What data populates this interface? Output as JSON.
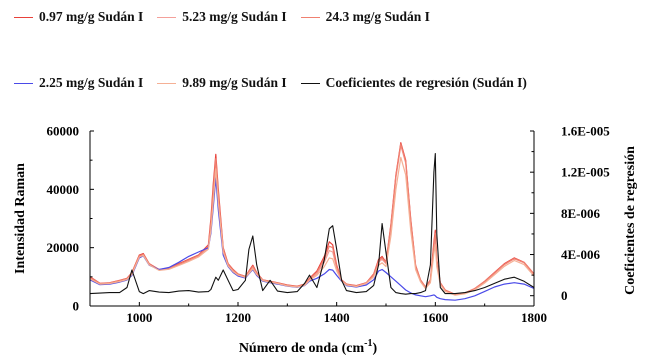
{
  "chart_data": {
    "type": "line",
    "xlabel": "Número de onda (cm",
    "xlabel_sup": "-1",
    "xlabel_close": ")",
    "ylabel": "Intensidad Raman",
    "y2label": "Coeficientes de regresión",
    "xlim": [
      900,
      1800
    ],
    "ylim": [
      0,
      60000
    ],
    "y2lim": [
      -1e-06,
      1.6e-05
    ],
    "x_ticks": [
      1000,
      1200,
      1400,
      1600,
      1800
    ],
    "x_tick_labels": [
      "1000",
      "1200",
      "1400",
      "1600",
      "1800"
    ],
    "y_ticks": [
      0,
      20000,
      40000,
      60000
    ],
    "y_tick_labels": [
      "0",
      "20000",
      "40000",
      "60000"
    ],
    "y2_ticks": [
      0,
      4e-06,
      8e-06,
      1.2e-05,
      1.6e-05
    ],
    "y2_tick_labels": [
      "0",
      "4E-006",
      "8E-006",
      "1.2E-005",
      "1.6E-005"
    ],
    "legend_position": "top",
    "grid": false,
    "x": [
      900,
      920,
      940,
      960,
      975,
      985,
      1000,
      1008,
      1020,
      1040,
      1060,
      1080,
      1100,
      1120,
      1140,
      1145,
      1150,
      1155,
      1160,
      1170,
      1180,
      1190,
      1200,
      1215,
      1222,
      1230,
      1238,
      1250,
      1265,
      1280,
      1300,
      1320,
      1335,
      1345,
      1360,
      1375,
      1385,
      1392,
      1400,
      1410,
      1420,
      1440,
      1460,
      1475,
      1485,
      1492,
      1500,
      1510,
      1520,
      1530,
      1540,
      1550,
      1560,
      1570,
      1580,
      1590,
      1597,
      1600,
      1603,
      1610,
      1620,
      1640,
      1660,
      1680,
      1700,
      1720,
      1740,
      1760,
      1780,
      1800
    ],
    "series": [
      {
        "name": "0.97 mg/g Sudán I",
        "color": "#e8413a",
        "axis": "left",
        "values": [
          10000,
          7800,
          8000,
          8800,
          9500,
          11500,
          17500,
          18000,
          14500,
          12500,
          13000,
          14500,
          16000,
          17500,
          21000,
          30000,
          42000,
          52000,
          40000,
          20000,
          14500,
          12500,
          11000,
          10200,
          12000,
          14000,
          11500,
          9000,
          8500,
          8000,
          7200,
          6800,
          7500,
          9500,
          12000,
          17000,
          22000,
          21000,
          14000,
          9000,
          7500,
          7000,
          8000,
          11000,
          16000,
          17000,
          15000,
          28000,
          45000,
          56000,
          50000,
          30000,
          14000,
          9000,
          6500,
          9000,
          22000,
          26000,
          16000,
          8000,
          5500,
          4000,
          4500,
          6000,
          8500,
          11500,
          14500,
          16500,
          15000,
          11000
        ]
      },
      {
        "name": "5.23 mg/g Sudán I",
        "color": "#f4a09a",
        "axis": "left",
        "values": [
          9500,
          7600,
          7800,
          8500,
          9200,
          11000,
          17000,
          17500,
          14200,
          12300,
          12700,
          14000,
          15500,
          17000,
          20000,
          27000,
          38000,
          49000,
          37000,
          19000,
          14000,
          12000,
          10800,
          10000,
          11500,
          13000,
          11000,
          8800,
          8300,
          7800,
          7000,
          6600,
          7200,
          9000,
          11000,
          15000,
          19000,
          18500,
          13000,
          8700,
          7300,
          6800,
          7800,
          10500,
          15000,
          16000,
          14500,
          27000,
          44000,
          55000,
          49000,
          29000,
          13500,
          8800,
          6300,
          8500,
          20000,
          24000,
          15000,
          7800,
          5300,
          3900,
          4400,
          5900,
          8300,
          11200,
          14200,
          16200,
          14800,
          10800
        ]
      },
      {
        "name": "24.3 mg/g Sudán I",
        "color": "#f08070",
        "axis": "left",
        "values": [
          9800,
          7700,
          7900,
          8700,
          9400,
          11300,
          17200,
          17700,
          14400,
          12400,
          12900,
          14300,
          15800,
          17300,
          20500,
          28500,
          40000,
          50500,
          38500,
          19500,
          14300,
          12300,
          10900,
          10100,
          11800,
          13600,
          11300,
          8900,
          8400,
          7900,
          7100,
          6700,
          7400,
          9300,
          11600,
          16000,
          20500,
          20000,
          13500,
          8800,
          7400,
          6900,
          7900,
          10800,
          15500,
          16500,
          14800,
          27500,
          44500,
          55500,
          49500,
          29500,
          13800,
          8900,
          6400,
          8800,
          21000,
          25000,
          15500,
          7900,
          5400,
          3950,
          4450,
          5950,
          8400,
          11300,
          14300,
          16300,
          14900,
          10900
        ]
      },
      {
        "name": "2.25 mg/g Sudán I",
        "color": "#4a4ae8",
        "axis": "left",
        "values": [
          9000,
          7300,
          7500,
          8200,
          8900,
          10500,
          16500,
          17200,
          14000,
          12500,
          13200,
          15000,
          17000,
          18500,
          20000,
          25000,
          34000,
          44000,
          33000,
          17500,
          13500,
          11500,
          10300,
          9600,
          11000,
          12500,
          10500,
          8500,
          8000,
          7500,
          6800,
          6400,
          7000,
          8500,
          9500,
          11000,
          12500,
          12300,
          10500,
          8500,
          7000,
          6500,
          7200,
          9000,
          12000,
          12500,
          11500,
          10000,
          8500,
          7000,
          5500,
          4500,
          3800,
          3500,
          3200,
          3500,
          3800,
          3500,
          3000,
          2500,
          2200,
          2000,
          2500,
          3500,
          5000,
          6500,
          7500,
          8000,
          7500,
          6000
        ]
      },
      {
        "name": "9.89 mg/g Sudán I",
        "color": "#f5b095",
        "axis": "left",
        "values": [
          9300,
          7500,
          7700,
          8400,
          9100,
          10800,
          16800,
          17400,
          14100,
          12200,
          12600,
          13900,
          15300,
          16800,
          19500,
          26000,
          36000,
          47000,
          35500,
          18500,
          13800,
          11800,
          10600,
          9800,
          11200,
          12800,
          10800,
          8700,
          8200,
          7700,
          6900,
          6500,
          7100,
          8800,
          10500,
          13500,
          16500,
          16200,
          12000,
          8600,
          7200,
          6700,
          7700,
          10000,
          14000,
          14800,
          13500,
          24000,
          40000,
          51000,
          45000,
          26000,
          12500,
          8300,
          6000,
          8000,
          18000,
          21000,
          13500,
          7300,
          5000,
          3700,
          4200,
          5600,
          7900,
          10700,
          13600,
          15600,
          14200,
          10300
        ]
      },
      {
        "name": "Coeficientes de regresión (Sudán I)",
        "color": "#111111",
        "axis": "right",
        "values": [
          2e-07,
          2.5e-07,
          3e-07,
          3e-07,
          8e-07,
          2.5e-06,
          4e-07,
          2e-07,
          5e-07,
          3.5e-07,
          3e-07,
          4.5e-07,
          5e-07,
          3.5e-07,
          4e-07,
          6e-07,
          1.2e-06,
          1.8e-06,
          1.5e-06,
          2.5e-06,
          1.5e-06,
          5e-07,
          6e-07,
          1.5e-06,
          4.5e-06,
          5.8e-06,
          3e-06,
          5e-07,
          1.5e-06,
          4.5e-07,
          3e-07,
          4e-07,
          1.2e-06,
          2e-06,
          8e-07,
          3.5e-06,
          6.5e-06,
          6.8e-06,
          4.5e-06,
          1.5e-06,
          5e-07,
          3e-07,
          4e-07,
          1e-06,
          3e-06,
          7e-06,
          4.2e-06,
          8e-07,
          3e-07,
          2e-07,
          1.5e-07,
          2e-07,
          2e-07,
          3e-07,
          5e-07,
          3e-06,
          1.2e-05,
          1.38e-05,
          6e-06,
          8e-07,
          2e-07,
          2e-07,
          3e-07,
          5e-07,
          8e-07,
          1.2e-06,
          1.6e-06,
          1.8e-06,
          1.4e-06,
          8e-07
        ]
      }
    ]
  }
}
